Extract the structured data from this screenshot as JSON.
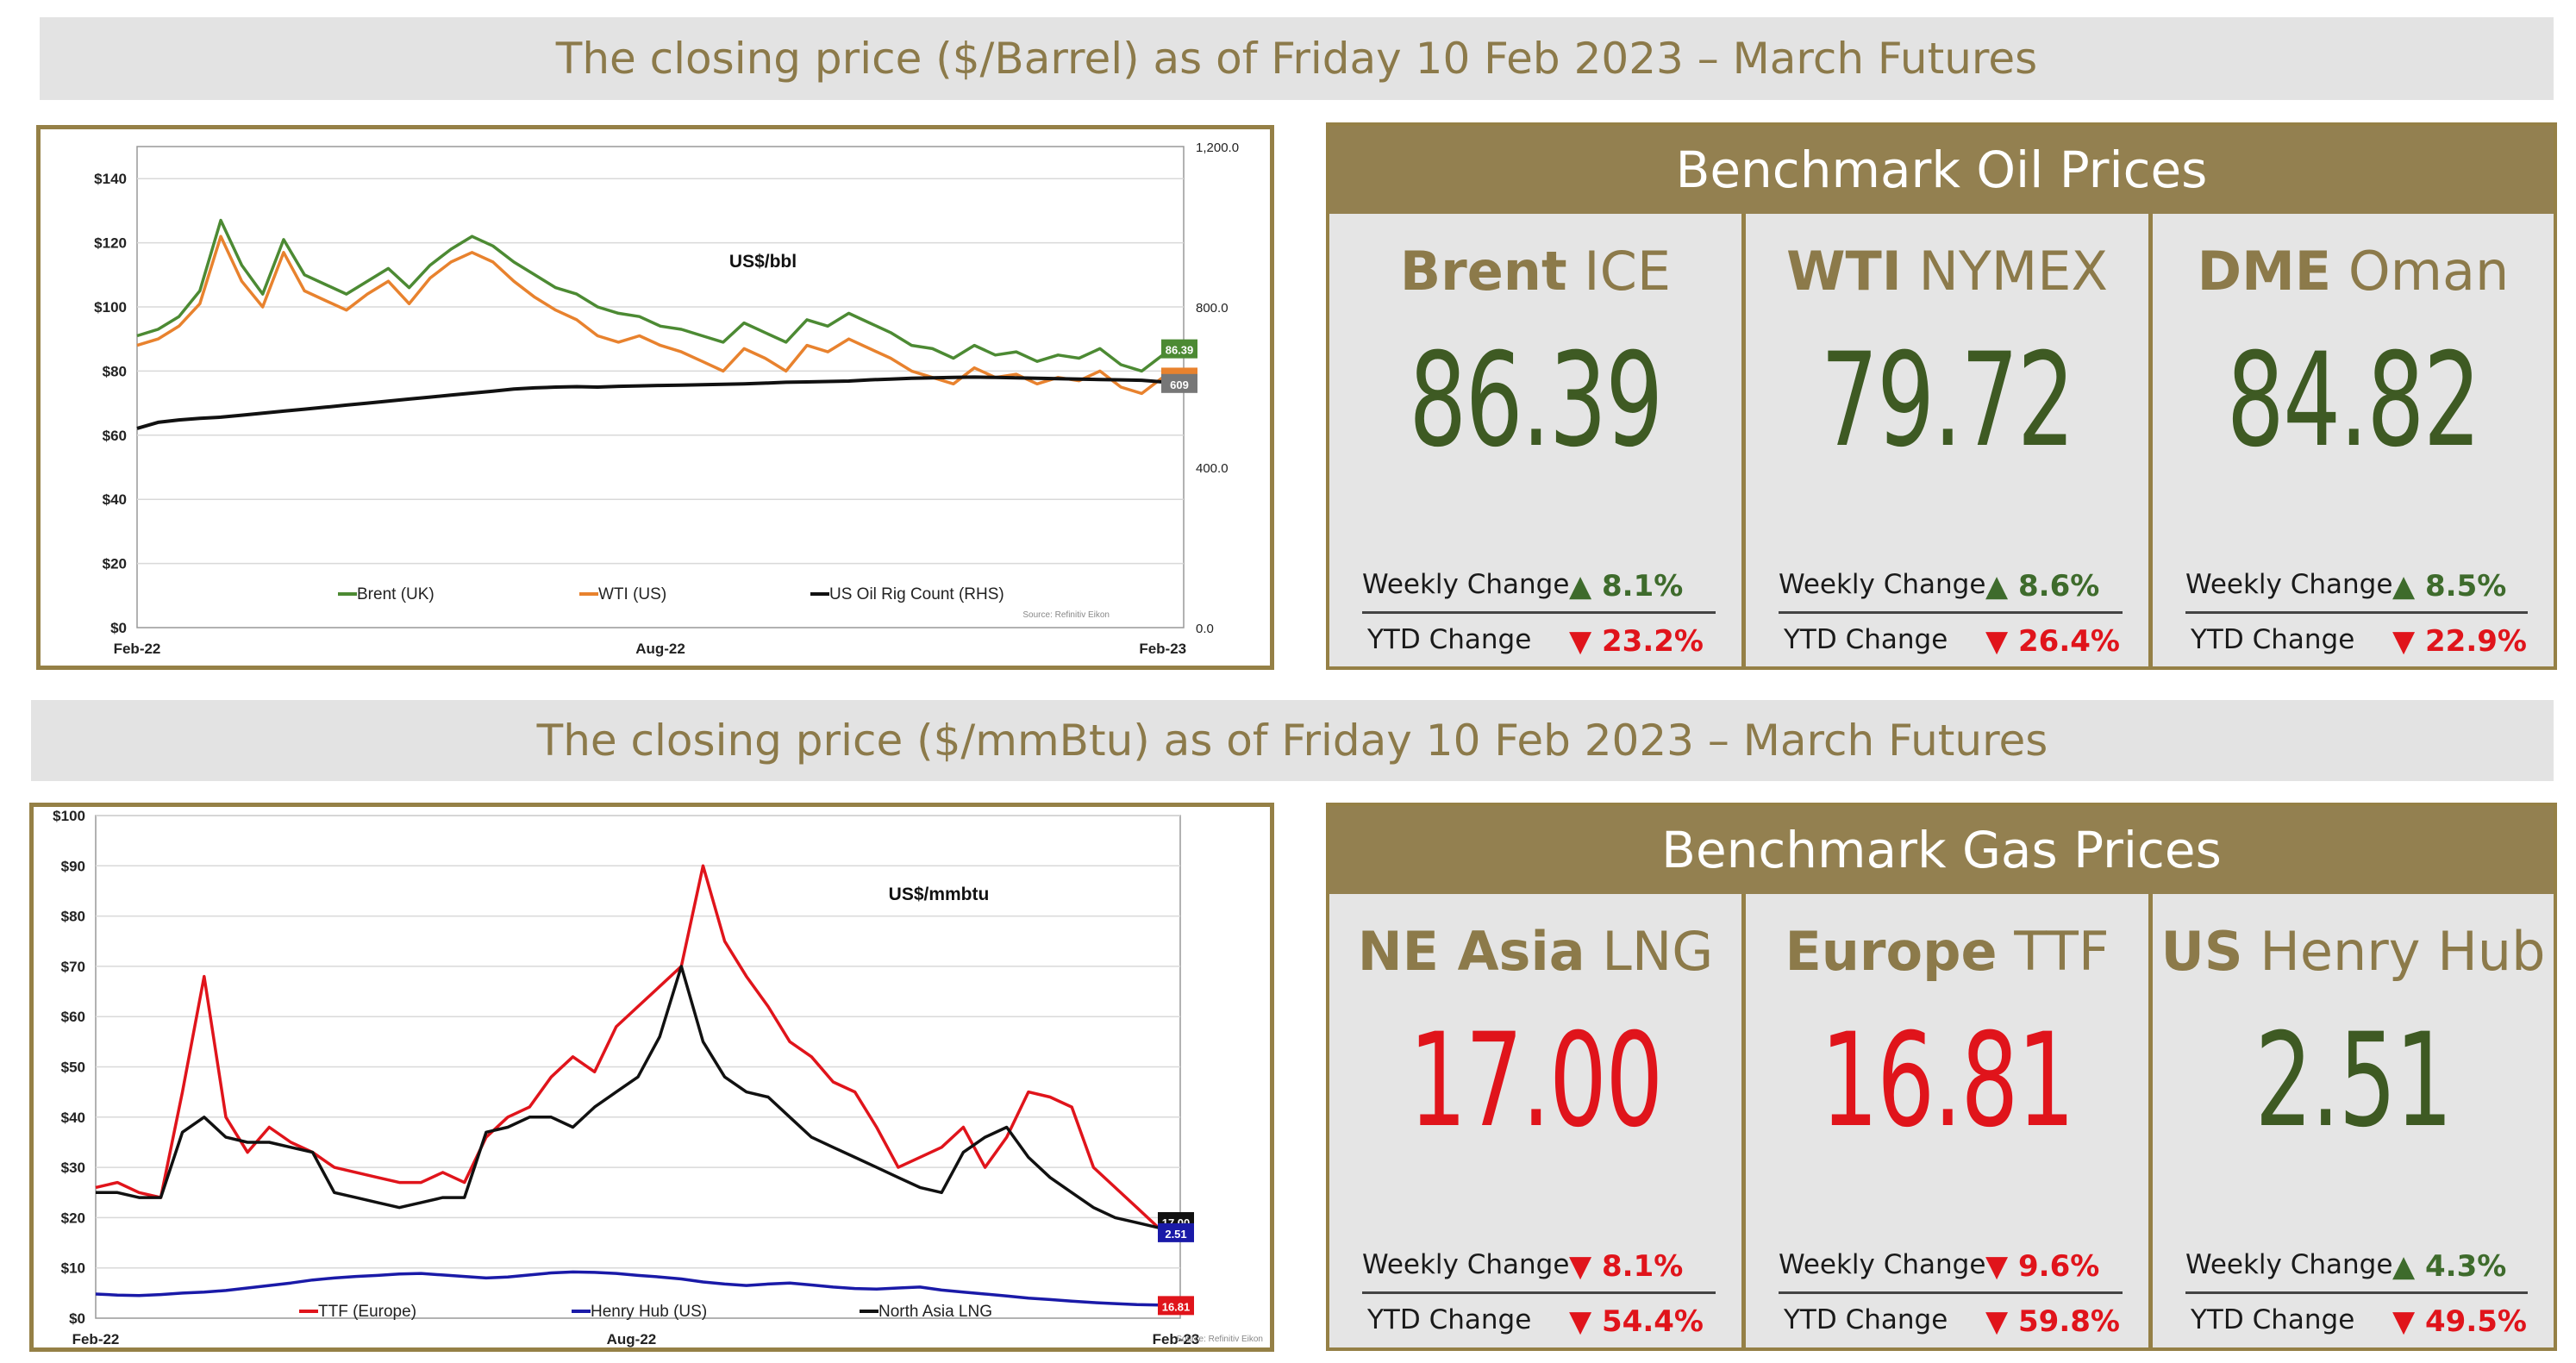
{
  "oil": {
    "banner": "The closing price ($/Barrel) as of Friday 10 Feb 2023 – March Futures",
    "panel_title": "Benchmark Oil Prices",
    "benchmarks": [
      {
        "bold": "Brent",
        "rest": " ICE",
        "price": "86.39",
        "price_color": "#3e5a23",
        "weekly_label": "Weekly Change",
        "weekly_arrow": "▲",
        "weekly_value": "8.1%",
        "weekly_dir": "up",
        "ytd_label": "YTD Change",
        "ytd_arrow": "▼",
        "ytd_value": "23.2%",
        "ytd_dir": "down"
      },
      {
        "bold": "WTI",
        "rest": " NYMEX",
        "price": "79.72",
        "price_color": "#3e5a23",
        "weekly_label": "Weekly Change",
        "weekly_arrow": "▲",
        "weekly_value": "8.6%",
        "weekly_dir": "up",
        "ytd_label": "YTD Change",
        "ytd_arrow": "▼",
        "ytd_value": "26.4%",
        "ytd_dir": "down"
      },
      {
        "bold": "DME",
        "rest": " Oman",
        "price": "84.82",
        "price_color": "#3e5a23",
        "weekly_label": "Weekly Change",
        "weekly_arrow": "▲",
        "weekly_value": "8.5%",
        "weekly_dir": "up",
        "ytd_label": "YTD Change",
        "ytd_arrow": "▼",
        "ytd_value": "22.9%",
        "ytd_dir": "down"
      }
    ]
  },
  "gas": {
    "banner": "The closing price ($/mmBtu) as of Friday 10 Feb 2023 – March Futures",
    "panel_title": "Benchmark Gas Prices",
    "benchmarks": [
      {
        "bold": "NE Asia",
        "rest": " LNG",
        "price": "17.00",
        "price_color": "#e0141b",
        "weekly_label": "Weekly Change",
        "weekly_arrow": "▼",
        "weekly_value": "8.1%",
        "weekly_dir": "down",
        "ytd_label": "YTD Change",
        "ytd_arrow": "▼",
        "ytd_value": "54.4%",
        "ytd_dir": "down"
      },
      {
        "bold": "Europe",
        "rest": " TTF",
        "price": "16.81",
        "price_color": "#e0141b",
        "weekly_label": "Weekly Change",
        "weekly_arrow": "▼",
        "weekly_value": "9.6%",
        "weekly_dir": "down",
        "ytd_label": "YTD Change",
        "ytd_arrow": "▼",
        "ytd_value": "59.8%",
        "ytd_dir": "down"
      },
      {
        "bold": "US",
        "rest": " Henry Hub",
        "price": "2.51",
        "price_color": "#3e5a23",
        "weekly_label": "Weekly Change",
        "weekly_arrow": "▲",
        "weekly_value": "4.3%",
        "weekly_dir": "up",
        "ytd_label": "YTD Change",
        "ytd_arrow": "▼",
        "ytd_value": "49.5%",
        "ytd_dir": "down"
      }
    ]
  },
  "chart_data": [
    {
      "type": "line",
      "title": "US$/bbl",
      "source": "Source: Refinitiv Eikon",
      "x_ticks": [
        "Feb-22",
        "Aug-22",
        "Feb-23"
      ],
      "y_ticks_left": [
        "$0",
        "$20",
        "$40",
        "$60",
        "$80",
        "$100",
        "$120",
        "$140"
      ],
      "y_ticks_right": [
        "0.0",
        "400.0",
        "800.0",
        "1,200.0"
      ],
      "ylim": [
        0,
        150
      ],
      "ylim_right": [
        0,
        1200
      ],
      "grid": true,
      "legend_position": "bottom",
      "x": [
        0,
        0.02,
        0.04,
        0.06,
        0.08,
        0.1,
        0.12,
        0.14,
        0.16,
        0.18,
        0.2,
        0.22,
        0.24,
        0.26,
        0.28,
        0.3,
        0.32,
        0.34,
        0.36,
        0.38,
        0.4,
        0.42,
        0.44,
        0.46,
        0.48,
        0.5,
        0.52,
        0.54,
        0.56,
        0.58,
        0.6,
        0.62,
        0.64,
        0.66,
        0.68,
        0.7,
        0.72,
        0.74,
        0.76,
        0.78,
        0.8,
        0.82,
        0.84,
        0.86,
        0.88,
        0.9,
        0.92,
        0.94,
        0.96,
        0.98,
        1.0
      ],
      "series": [
        {
          "name": "Brent (UK)",
          "color": "#4c8a33",
          "axis": "left",
          "values": [
            91,
            93,
            97,
            105,
            127,
            113,
            104,
            121,
            110,
            107,
            104,
            108,
            112,
            106,
            113,
            118,
            122,
            119,
            114,
            110,
            106,
            104,
            100,
            98,
            97,
            94,
            93,
            91,
            89,
            95,
            92,
            89,
            96,
            94,
            98,
            95,
            92,
            88,
            87,
            84,
            88,
            85,
            86,
            83,
            85,
            84,
            87,
            82,
            80,
            85,
            86.39
          ]
        },
        {
          "name": "WTI (US)",
          "color": "#e8822e",
          "axis": "left",
          "values": [
            88,
            90,
            94,
            101,
            122,
            108,
            100,
            117,
            105,
            102,
            99,
            104,
            108,
            101,
            109,
            114,
            117,
            114,
            108,
            103,
            99,
            96,
            91,
            89,
            91,
            88,
            86,
            83,
            80,
            87,
            84,
            80,
            88,
            86,
            90,
            87,
            84,
            80,
            78,
            76,
            81,
            78,
            79,
            76,
            78,
            77,
            80,
            75,
            73,
            78,
            79.72
          ]
        },
        {
          "name": "US Oil Rig Count (RHS)",
          "color": "#111111",
          "axis": "right",
          "values": [
            497,
            512,
            518,
            522,
            525,
            530,
            535,
            540,
            545,
            550,
            555,
            560,
            565,
            570,
            575,
            580,
            585,
            590,
            595,
            598,
            600,
            601,
            600,
            602,
            603,
            604,
            605,
            606,
            607,
            608,
            610,
            612,
            613,
            614,
            615,
            618,
            620,
            622,
            623,
            624,
            625,
            624,
            623,
            622,
            621,
            620,
            619,
            618,
            617,
            613,
            609
          ]
        }
      ],
      "end_labels": [
        "86.39",
        "79.72",
        "609"
      ]
    },
    {
      "type": "line",
      "title": "US$/mmbtu",
      "source": "Source: Refinitiv Eikon",
      "x_ticks": [
        "Feb-22",
        "Aug-22",
        "Feb-23"
      ],
      "y_ticks": [
        "$0",
        "$10",
        "$20",
        "$30",
        "$40",
        "$50",
        "$60",
        "$70",
        "$80",
        "$90",
        "$100"
      ],
      "ylim": [
        0,
        100
      ],
      "grid": true,
      "legend_position": "bottom",
      "x": [
        0,
        0.02,
        0.04,
        0.06,
        0.08,
        0.1,
        0.12,
        0.14,
        0.16,
        0.18,
        0.2,
        0.22,
        0.24,
        0.26,
        0.28,
        0.3,
        0.32,
        0.34,
        0.36,
        0.38,
        0.4,
        0.42,
        0.44,
        0.46,
        0.48,
        0.5,
        0.52,
        0.54,
        0.56,
        0.58,
        0.6,
        0.62,
        0.64,
        0.66,
        0.68,
        0.7,
        0.72,
        0.74,
        0.76,
        0.78,
        0.8,
        0.82,
        0.84,
        0.86,
        0.88,
        0.9,
        0.92,
        0.94,
        0.96,
        0.98,
        1.0
      ],
      "series": [
        {
          "name": "TTF (Europe)",
          "color": "#e0141b",
          "values": [
            26,
            27,
            25,
            24,
            45,
            68,
            40,
            33,
            38,
            35,
            33,
            30,
            29,
            28,
            27,
            27,
            29,
            27,
            36,
            40,
            42,
            48,
            52,
            49,
            58,
            62,
            66,
            70,
            90,
            75,
            68,
            62,
            55,
            52,
            47,
            45,
            38,
            30,
            32,
            34,
            38,
            30,
            36,
            45,
            44,
            42,
            30,
            26,
            22,
            18,
            16.81
          ]
        },
        {
          "name": "Henry Hub (US)",
          "color": "#1a1aa8",
          "values": [
            4.8,
            4.6,
            4.5,
            4.7,
            5.0,
            5.2,
            5.5,
            6.0,
            6.5,
            7.0,
            7.6,
            8.0,
            8.3,
            8.5,
            8.8,
            8.9,
            8.6,
            8.3,
            8.0,
            8.2,
            8.6,
            9.0,
            9.2,
            9.1,
            8.9,
            8.5,
            8.2,
            7.8,
            7.2,
            6.8,
            6.5,
            6.8,
            7.0,
            6.6,
            6.2,
            5.9,
            5.8,
            6.0,
            6.2,
            5.6,
            5.2,
            4.8,
            4.4,
            4.0,
            3.7,
            3.4,
            3.1,
            2.9,
            2.7,
            2.6,
            2.51
          ]
        },
        {
          "name": "North Asia LNG",
          "color": "#111111",
          "values": [
            25,
            25,
            24,
            24,
            37,
            40,
            36,
            35,
            35,
            34,
            33,
            25,
            24,
            23,
            22,
            23,
            24,
            24,
            37,
            38,
            40,
            40,
            38,
            42,
            45,
            48,
            56,
            70,
            55,
            48,
            45,
            44,
            40,
            36,
            34,
            32,
            30,
            28,
            26,
            25,
            33,
            36,
            38,
            32,
            28,
            25,
            22,
            20,
            19,
            18,
            17.0
          ]
        }
      ],
      "end_labels": [
        "17.00",
        "16.81",
        "2.51"
      ]
    }
  ]
}
